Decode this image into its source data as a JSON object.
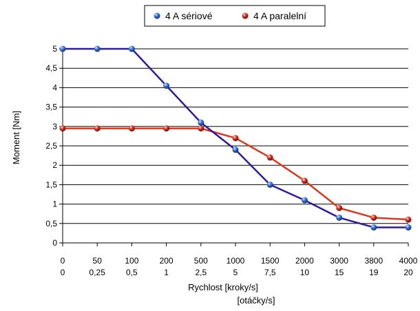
{
  "chart_data": {
    "type": "line",
    "x_tick_labels_rpm": [
      "0",
      "50",
      "100",
      "200",
      "500",
      "1000",
      "1500",
      "2000",
      "3000",
      "3800",
      "4000"
    ],
    "x_tick_labels_rps": [
      "0",
      "0,25",
      "0,5",
      "1",
      "2,5",
      "5",
      "7,5",
      "10",
      "15",
      "19",
      "20"
    ],
    "y_tick_labels": [
      "0",
      "0,5",
      "1",
      "1,5",
      "2",
      "2,5",
      "3",
      "3,5",
      "4",
      "4,5",
      "5"
    ],
    "xlabel": "Rychlost [kroky/s]",
    "xlabel2": "[otáčky/s]",
    "ylabel": "Moment [Nm]",
    "ylim": [
      0,
      5
    ],
    "grid": true,
    "legend_position": "top",
    "series": [
      {
        "name": "4 A sériové",
        "color": "#2e1a9c",
        "marker_color": "#2a5fc9",
        "values": [
          5.0,
          5.0,
          5.0,
          4.05,
          3.1,
          2.4,
          1.5,
          1.1,
          0.65,
          0.4,
          0.4
        ]
      },
      {
        "name": "4 A paralelní",
        "color": "#d9381e",
        "marker_color": "#c8261a",
        "values": [
          2.95,
          2.95,
          2.95,
          2.95,
          2.95,
          2.7,
          2.2,
          1.6,
          0.9,
          0.65,
          0.6
        ]
      }
    ]
  }
}
